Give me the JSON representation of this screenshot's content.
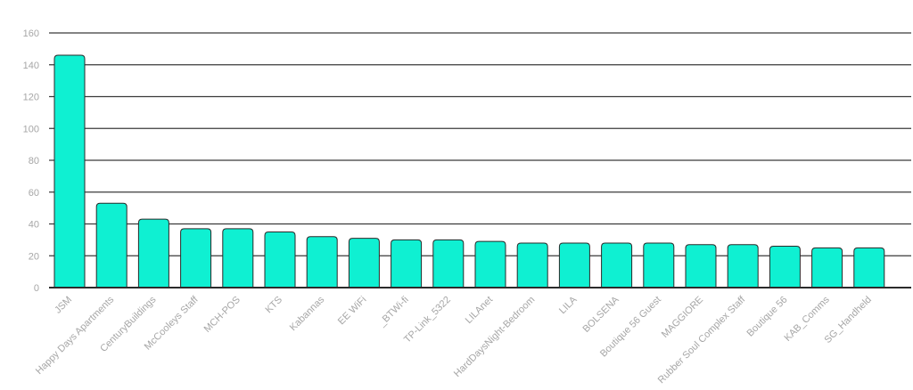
{
  "chart_data": {
    "type": "bar",
    "title": "",
    "xlabel": "",
    "ylabel": "",
    "ylim": [
      0,
      160
    ],
    "yticks": [
      0,
      20,
      40,
      60,
      80,
      100,
      120,
      140,
      160
    ],
    "grid": true,
    "legend": "none",
    "bar_color": "#0ff0d2",
    "categories": [
      "JSM",
      "Happy Days Apartments",
      "CenturyBuildings",
      "McCooleys Staff",
      "MCH-POS",
      "KTS",
      "Kabannas",
      "EE WiFi",
      "_BTWi-fi",
      "TP-Link_5322",
      "LILAnet",
      "HardDaysNight-Bedroom",
      "LILA",
      "BOLSENA",
      "Boutique 56 Guest",
      "MAGGIORE",
      "Rubber Soul Complex Staff",
      "Boutique 56",
      "KAB_Comms",
      "SG_Handheld"
    ],
    "values": [
      146,
      53,
      43,
      37,
      37,
      35,
      32,
      31,
      30,
      30,
      29,
      28,
      28,
      28,
      28,
      27,
      27,
      26,
      25,
      25
    ]
  }
}
